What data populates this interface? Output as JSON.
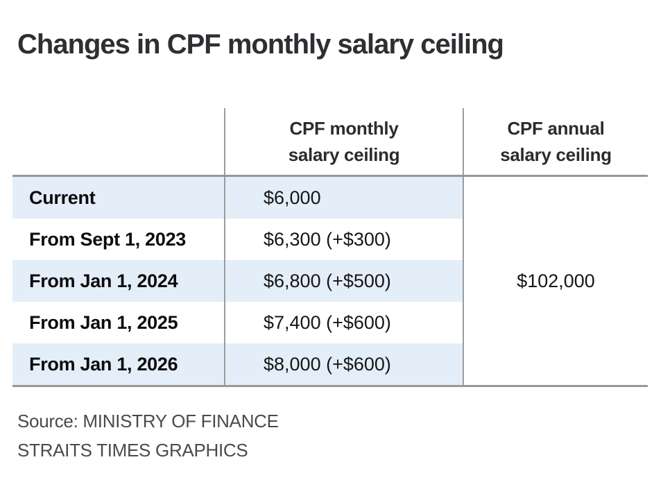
{
  "title": "Changes in CPF monthly salary ceiling",
  "table": {
    "header": {
      "monthly": "CPF monthly\nsalary ceiling",
      "annual": "CPF annual\nsalary ceiling"
    },
    "rows": [
      {
        "label": "Current",
        "monthly": "$6,000"
      },
      {
        "label": "From Sept 1, 2023",
        "monthly": "$6,300 (+$300)"
      },
      {
        "label": "From Jan 1, 2024",
        "monthly": "$6,800 (+$500)"
      },
      {
        "label": "From Jan 1, 2025",
        "monthly": "$7,400 (+$600)"
      },
      {
        "label": "From Jan 1, 2026",
        "monthly": "$8,000 (+$600)"
      }
    ],
    "annual_value": "$102,000"
  },
  "source": {
    "line1": "Source: MINISTRY OF FINANCE",
    "line2": "STRAITS TIMES GRAPHICS"
  },
  "colors": {
    "stripe": "#e4eef8",
    "border": "#95979a",
    "divider": "#9b9b9b",
    "title-text": "#2d2f33",
    "header-text": "#2a2c2f",
    "label-text": "#0c0c0c",
    "body-text": "#161616",
    "source-text": "#4a4a4a"
  },
  "chart_data": {
    "type": "table",
    "title": "Changes in CPF monthly salary ceiling",
    "columns": [
      "",
      "CPF monthly salary ceiling",
      "CPF annual salary ceiling"
    ],
    "rows": [
      {
        "period": "Current",
        "monthly_salary_ceiling": 6000,
        "increase": null
      },
      {
        "period": "From Sept 1, 2023",
        "monthly_salary_ceiling": 6300,
        "increase": 300
      },
      {
        "period": "From Jan 1, 2024",
        "monthly_salary_ceiling": 6800,
        "increase": 500
      },
      {
        "period": "From Jan 1, 2025",
        "monthly_salary_ceiling": 7400,
        "increase": 600
      },
      {
        "period": "From Jan 1, 2026",
        "monthly_salary_ceiling": 8000,
        "increase": 600
      }
    ],
    "annual_salary_ceiling": 102000,
    "layout_notes": "Annual salary ceiling cell is merged vertically across all five rows; rows 1, 3, 5 have light-blue zebra striping on the first two columns only",
    "source": "Source: MINISTRY OF FINANCE — STRAITS TIMES GRAPHICS"
  }
}
